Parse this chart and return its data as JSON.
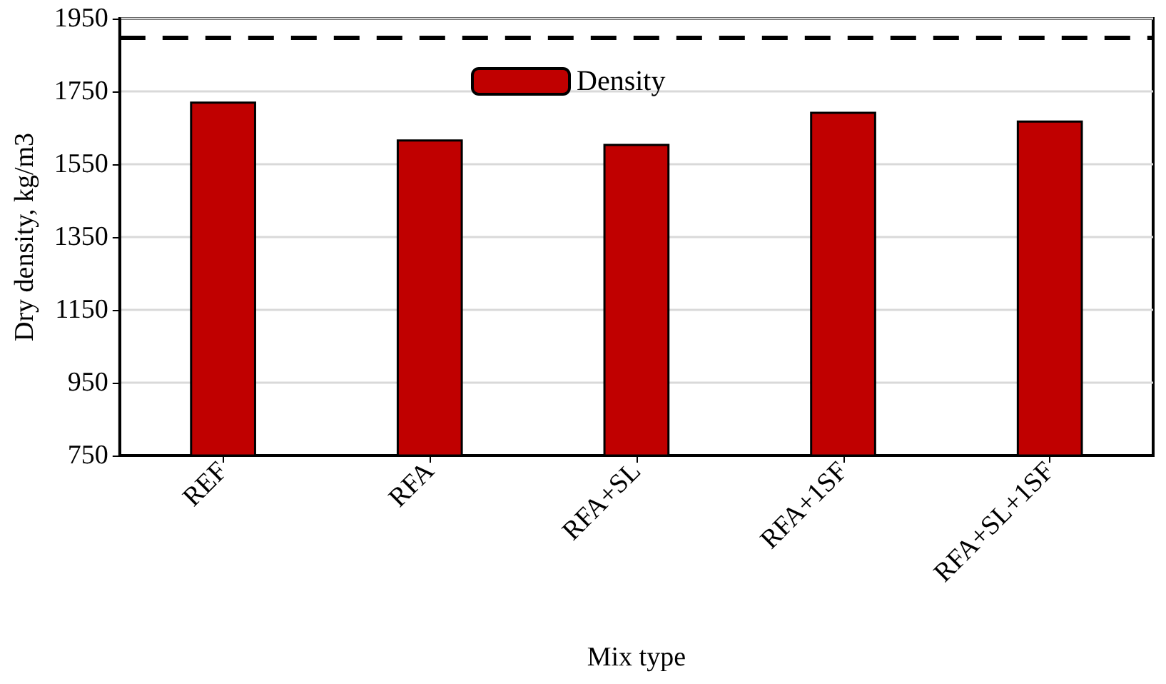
{
  "chart_data": {
    "type": "bar",
    "xlabel": "Mix type",
    "ylabel": "Dry density, kg/m3",
    "categories": [
      "REF",
      "RFA",
      "RFA+SL",
      "RFA+1SF",
      "RFA+SL+1SF"
    ],
    "series": [
      {
        "name": "Density",
        "color": "#c00000",
        "values": [
          1722,
          1618,
          1606,
          1694,
          1670
        ]
      }
    ],
    "ylim": [
      750,
      1950
    ],
    "yticks": [
      750,
      950,
      1150,
      1350,
      1550,
      1750,
      1950
    ],
    "grid": "y",
    "legend": "top",
    "ref_lines": [
      {
        "axis": "y",
        "value": 1900,
        "color": "#000000",
        "line_style": "dashed"
      }
    ]
  }
}
